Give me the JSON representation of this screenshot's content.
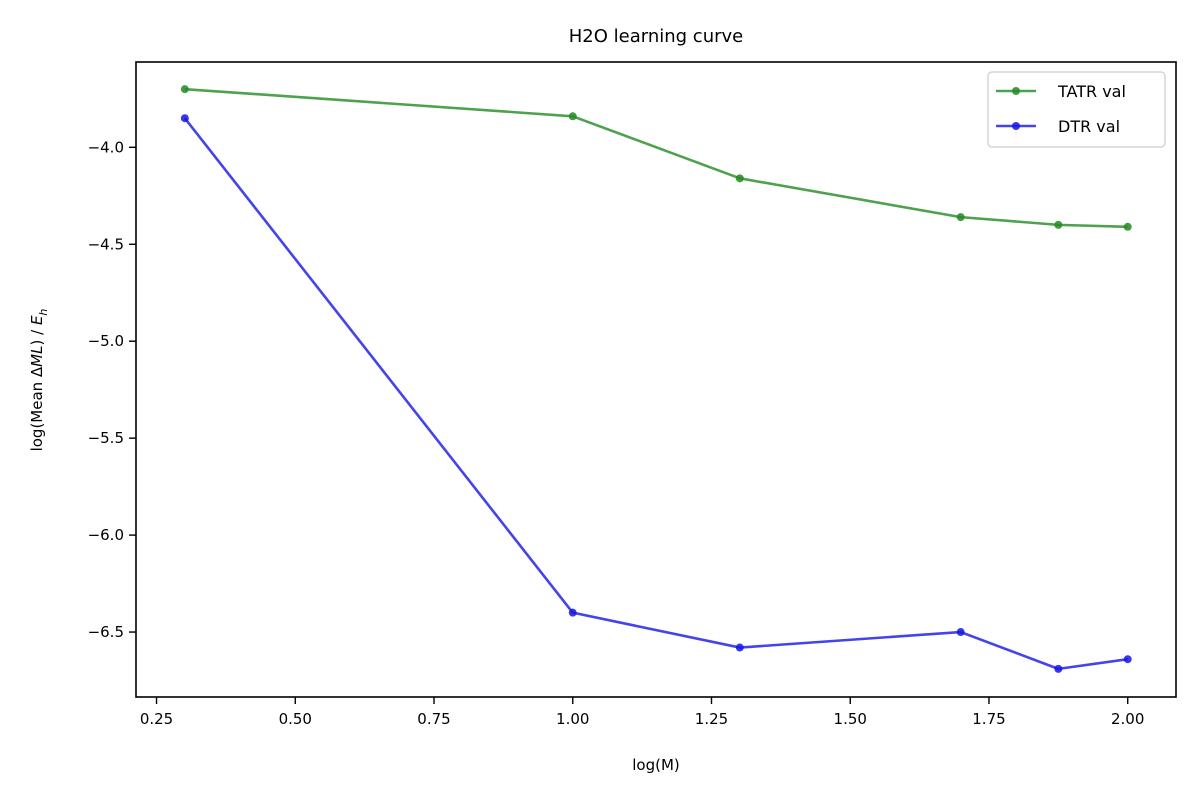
{
  "chart_data": {
    "type": "line",
    "title": "H2O learning curve",
    "xlabel": "log(M)",
    "ylabel_prefix": "log(Mean ",
    "ylabel_delta": "Δ",
    "ylabel_ml": "ML",
    "ylabel_mid": ") / ",
    "ylabel_e": "E",
    "ylabel_sub": "h",
    "xlim": [
      0.213,
      2.087
    ],
    "ylim": [
      -6.835,
      -3.56
    ],
    "xticks": [
      0.25,
      0.5,
      0.75,
      1.0,
      1.25,
      1.5,
      1.75,
      2.0
    ],
    "xtick_labels": [
      "0.25",
      "0.50",
      "0.75",
      "1.00",
      "1.25",
      "1.50",
      "1.75",
      "2.00"
    ],
    "yticks": [
      -4.0,
      -4.5,
      -5.0,
      -5.5,
      -6.0,
      -6.5
    ],
    "ytick_labels": [
      "−4.0",
      "−4.5",
      "−5.0",
      "−5.5",
      "−6.0",
      "−6.5"
    ],
    "grid": false,
    "legend_position": "top-right",
    "x": [
      0.301,
      1.0,
      1.301,
      1.699,
      1.875,
      2.0
    ],
    "series": [
      {
        "name": "TATR val",
        "color": "#228B22",
        "values": [
          -3.7,
          -3.84,
          -4.16,
          -4.36,
          -4.4,
          -4.41
        ]
      },
      {
        "name": "DTR val",
        "color": "#1515E6",
        "values": [
          -3.85,
          -6.4,
          -6.58,
          -6.5,
          -6.69,
          -6.64
        ]
      }
    ]
  }
}
